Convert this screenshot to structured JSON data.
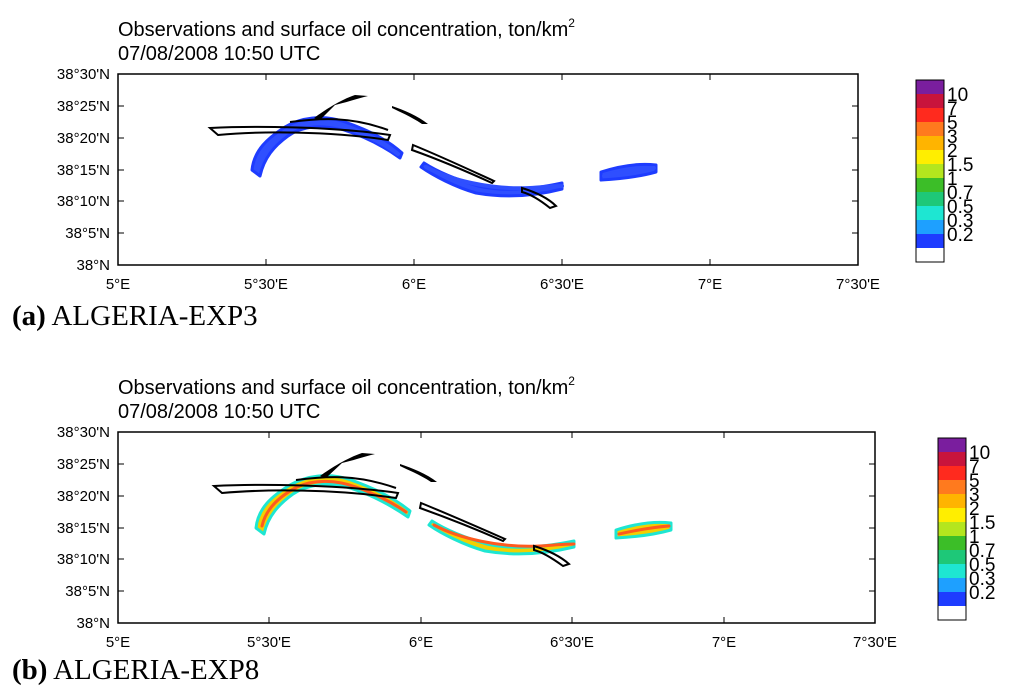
{
  "panels": [
    {
      "id": "a",
      "title_line1": "Observations and surface oil concentration, ton/km",
      "title_superscript": "2",
      "title_line2": "07/08/2008 10:50 UTC",
      "caption_letter": "(a)",
      "caption_name": "ALGERIA-EXP3",
      "slick_fill": "#2f4fff",
      "slick_core": "#2f4fff"
    },
    {
      "id": "b",
      "title_line1": "Observations and surface oil concentration, ton/km",
      "title_superscript": "2",
      "title_line2": "07/08/2008 10:50 UTC",
      "caption_letter": "(b)",
      "caption_name": "ALGERIA-EXP8",
      "slick_fill": "#f2d000",
      "slick_core": "#ff5a1e"
    }
  ],
  "axes": {
    "x_ticks": [
      "5°E",
      "5°30'E",
      "6°E",
      "6°30'E",
      "7°E",
      "7°30'E"
    ],
    "y_ticks": [
      "38°30'N",
      "38°25'N",
      "38°20'N",
      "38°15'N",
      "38°10'N",
      "38°5'N",
      "38°N"
    ]
  },
  "legend": {
    "labels": [
      "10",
      "7",
      "5",
      "3",
      "2",
      "1.5",
      "1",
      "0.7",
      "0.5",
      "0.3",
      "0.2"
    ],
    "colors": [
      "#7a1e9e",
      "#c8143c",
      "#ff2a1e",
      "#ff7a1e",
      "#ffb400",
      "#ffee00",
      "#b4e61e",
      "#3cbe28",
      "#1ec878",
      "#1ee6d2",
      "#1ea0ff",
      "#1e3cff"
    ]
  }
}
